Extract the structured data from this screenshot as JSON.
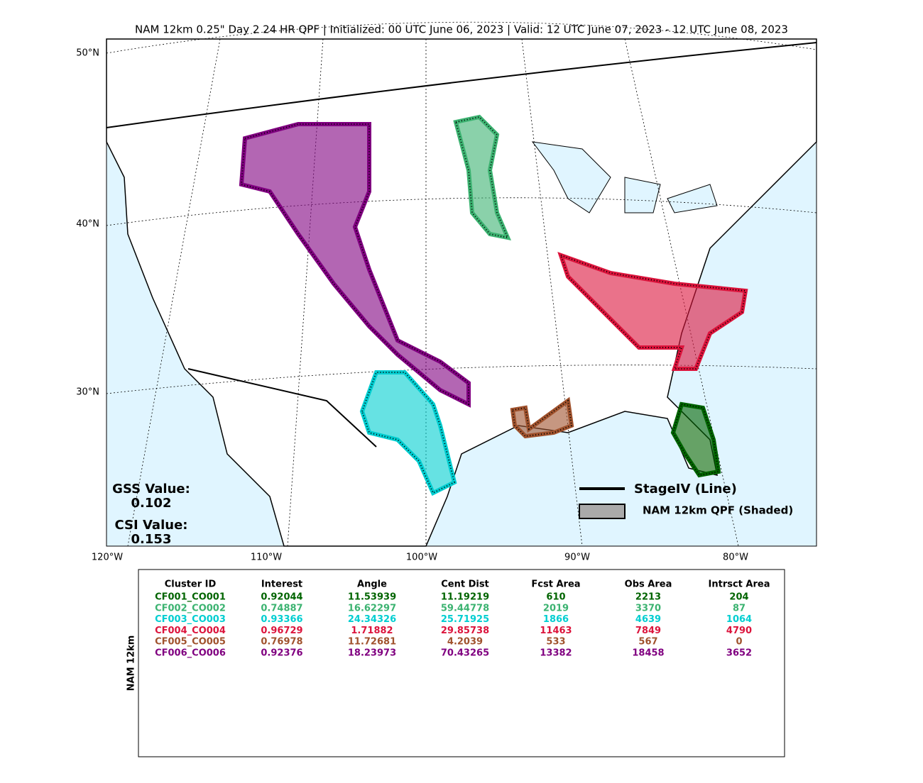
{
  "title": "NAM 12km 0.25\" Day 2 24 HR QPF | Initialized: 00 UTC June 06, 2023 | Valid: 12 UTC June 07, 2023 - 12 UTC June 08, 2023",
  "lat_labels": [
    "50°N",
    "40°N",
    "30°N"
  ],
  "lon_labels": [
    "120°W",
    "110°W",
    "100°W",
    "90°W",
    "80°W"
  ],
  "scores": [
    {
      "label": "GSS Value:",
      "value": "0.102"
    },
    {
      "label": "CSI Value:",
      "value": "0.153"
    }
  ],
  "legend": [
    "StageIV (Line)",
    "NAM 12km QPF (Shaded)"
  ],
  "table": {
    "row_label": "NAM 12km",
    "columns": [
      "Cluster ID",
      "Interest",
      "Angle",
      "Cent Dist",
      "Fcst Area",
      "Obs Area",
      "Intrsct Area"
    ],
    "rows": [
      {
        "color": "#006400",
        "cells": [
          "CF001_CO001",
          0.92044,
          11.53939,
          11.19219,
          610,
          2213,
          204
        ]
      },
      {
        "color": "#3cb371",
        "cells": [
          "CF002_CO002",
          0.74887,
          16.62297,
          59.44778,
          2019,
          3370,
          87
        ]
      },
      {
        "color": "#00ced1",
        "cells": [
          "CF003_CO003",
          0.93366,
          24.34326,
          25.71925,
          1866,
          4639,
          1064
        ]
      },
      {
        "color": "#dc143c",
        "cells": [
          "CF004_CO004",
          0.96729,
          1.71882,
          29.85738,
          11463,
          7849,
          4790
        ]
      },
      {
        "color": "#a0522d",
        "cells": [
          "CF005_CO005",
          0.76978,
          11.72681,
          4.2039,
          533,
          567,
          0
        ]
      },
      {
        "color": "#800080",
        "cells": [
          "CF006_CO006",
          0.92376,
          18.23973,
          70.43265,
          13382,
          18458,
          3652
        ]
      }
    ]
  }
}
